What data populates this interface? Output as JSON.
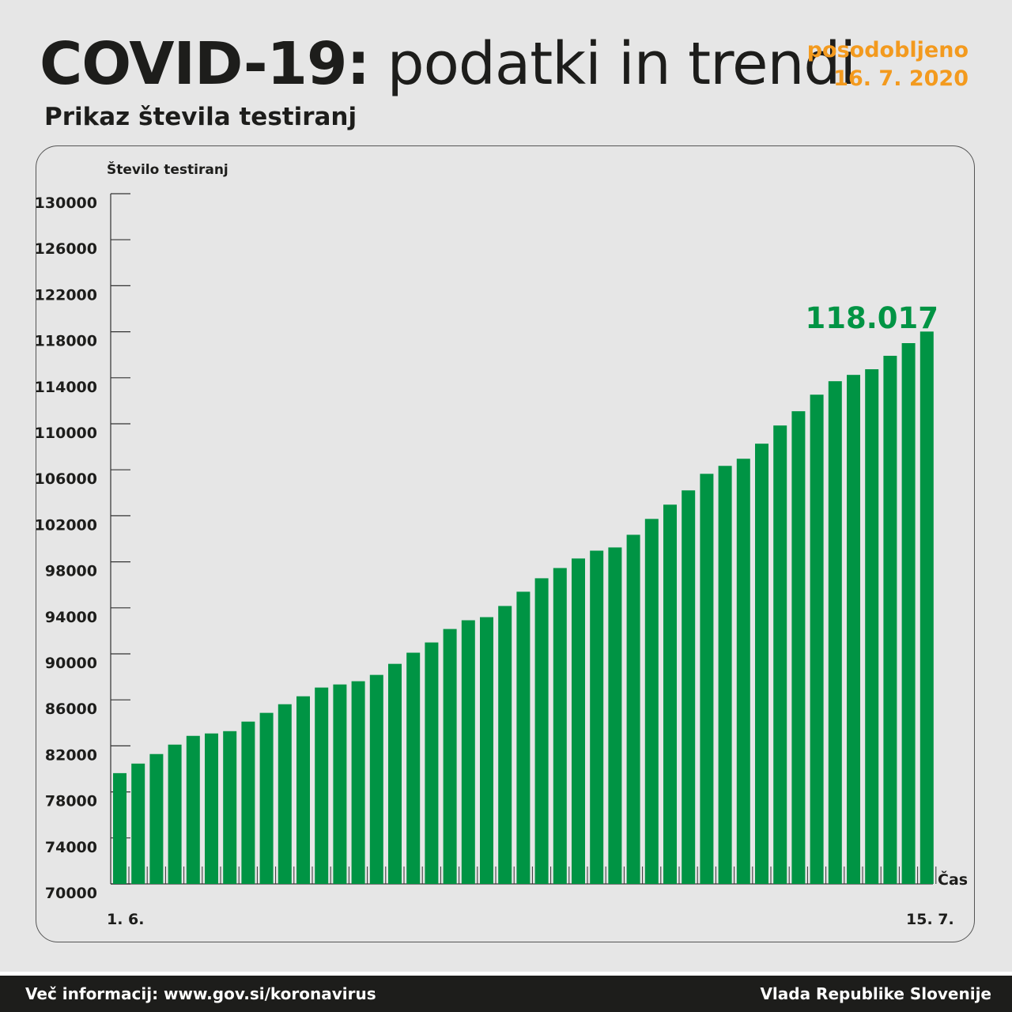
{
  "header": {
    "title_bold": "COVID-19:",
    "title_light": "podatki in trendi",
    "updated_label": "posodobljeno",
    "updated_date": "16. 7. 2020",
    "subtitle": "Prikaz števila testiranj"
  },
  "footer": {
    "left": "Več informacij: www.gov.si/koronavirus",
    "right": "Vlada Republike Slovenije"
  },
  "colors": {
    "bar": "#009444",
    "accent": "#f39a1e",
    "highlight": "#009444"
  },
  "chart_data": {
    "type": "bar",
    "title": "Prikaz števila testiranj",
    "ylabel": "Število testiranj",
    "xlabel": "Čas",
    "ylim": [
      70000,
      130000
    ],
    "yticks": [
      70000,
      74000,
      78000,
      82000,
      86000,
      90000,
      94000,
      98000,
      102000,
      106000,
      110000,
      114000,
      118000,
      122000,
      126000,
      130000
    ],
    "x_start_label": "1. 6.",
    "x_end_label": "15. 7.",
    "last_value_label": "118.017",
    "values": [
      79630,
      80460,
      81290,
      82110,
      82870,
      83080,
      83280,
      84110,
      84870,
      85620,
      86310,
      87070,
      87340,
      87620,
      88170,
      89130,
      90100,
      90990,
      92160,
      92920,
      93190,
      94160,
      95400,
      96570,
      97460,
      98290,
      98970,
      99250,
      100350,
      101730,
      102970,
      104210,
      105650,
      106340,
      106960,
      108270,
      109850,
      111090,
      112530,
      113700,
      114250,
      114740,
      115910,
      117010,
      118017
    ]
  }
}
